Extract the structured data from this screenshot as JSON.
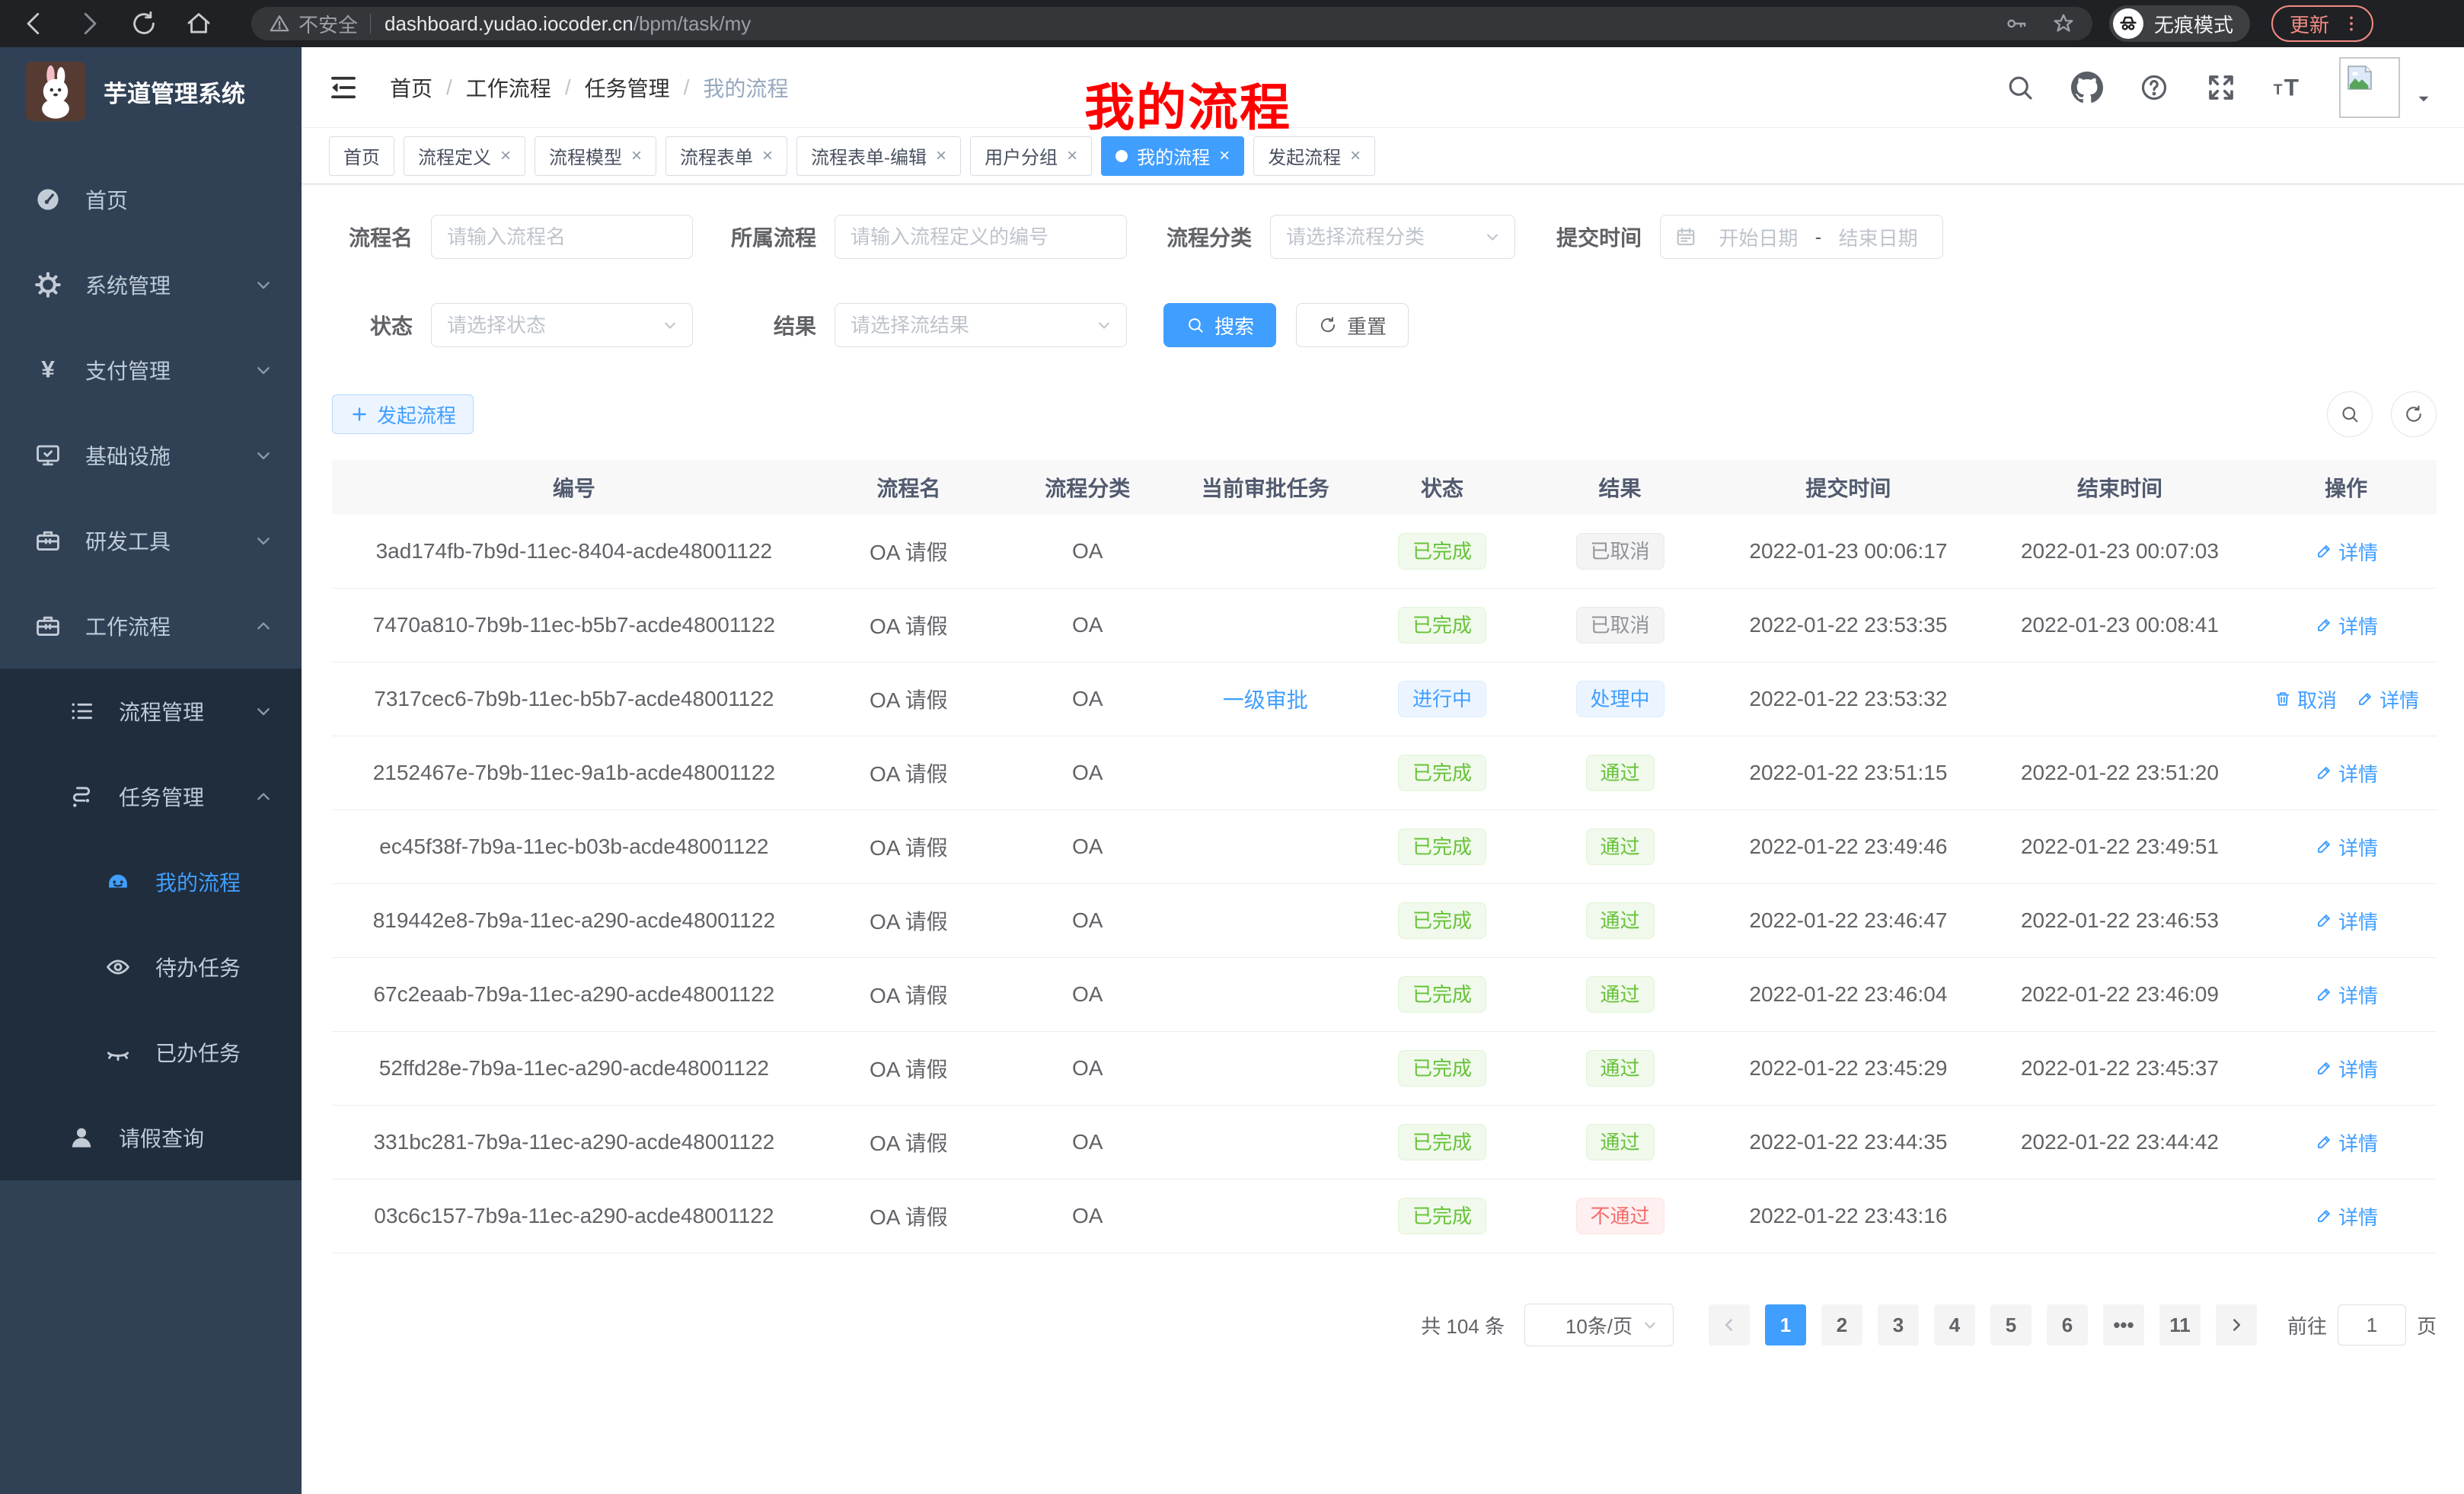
{
  "colors": {
    "accent": "#409eff",
    "success": "#67c23a",
    "danger": "#f56c6c",
    "info": "#909399",
    "sidebar_bg": "#304156",
    "submenu_bg": "#1f2d3d",
    "update_pill": "#f28b82"
  },
  "browser": {
    "security_warning": "不安全",
    "url_host": "dashboard.yudao.iocoder.cn",
    "url_path": "/bpm/task/my",
    "incognito_label": "无痕模式",
    "update_label": "更新"
  },
  "sidebar": {
    "logo_title": "芋道管理系统",
    "items": [
      {
        "id": "home",
        "label": "首页",
        "icon": "dashboard",
        "level": 1,
        "chevron": null,
        "active": false
      },
      {
        "id": "system",
        "label": "系统管理",
        "icon": "gear",
        "level": 1,
        "chevron": "down",
        "active": false
      },
      {
        "id": "payment",
        "label": "支付管理",
        "icon": "yen",
        "level": 1,
        "chevron": "down",
        "active": false
      },
      {
        "id": "infra",
        "label": "基础设施",
        "icon": "monitor",
        "level": 1,
        "chevron": "down",
        "active": false
      },
      {
        "id": "devtools",
        "label": "研发工具",
        "icon": "toolbox",
        "level": 1,
        "chevron": "down",
        "active": false
      },
      {
        "id": "workflow",
        "label": "工作流程",
        "icon": "toolbox",
        "level": 1,
        "chevron": "up",
        "active": false
      },
      {
        "id": "process-mgmt",
        "label": "流程管理",
        "icon": "list",
        "level": 2,
        "chevron": "down",
        "active": false
      },
      {
        "id": "task-mgmt",
        "label": "任务管理",
        "icon": "flow",
        "level": 2,
        "chevron": "up",
        "active": false
      },
      {
        "id": "my-process",
        "label": "我的流程",
        "icon": "robot",
        "level": 3,
        "chevron": null,
        "active": true
      },
      {
        "id": "todo-task",
        "label": "待办任务",
        "icon": "eye",
        "level": 3,
        "chevron": null,
        "active": false
      },
      {
        "id": "done-task",
        "label": "已办任务",
        "icon": "eye-closed",
        "level": 3,
        "chevron": null,
        "active": false
      },
      {
        "id": "leave-query",
        "label": "请假查询",
        "icon": "user",
        "level": 2,
        "chevron": null,
        "active": false
      }
    ]
  },
  "header": {
    "breadcrumb": [
      "首页",
      "工作流程",
      "任务管理",
      "我的流程"
    ],
    "annotation": "我的流程"
  },
  "tabs": [
    {
      "label": "首页",
      "active": false,
      "closable": false
    },
    {
      "label": "流程定义",
      "active": false,
      "closable": true
    },
    {
      "label": "流程模型",
      "active": false,
      "closable": true
    },
    {
      "label": "流程表单",
      "active": false,
      "closable": true
    },
    {
      "label": "流程表单-编辑",
      "active": false,
      "closable": true
    },
    {
      "label": "用户分组",
      "active": false,
      "closable": true
    },
    {
      "label": "我的流程",
      "active": true,
      "closable": true
    },
    {
      "label": "发起流程",
      "active": false,
      "closable": true
    }
  ],
  "filters": {
    "name_label": "流程名",
    "name_placeholder": "请输入流程名",
    "definition_label": "所属流程",
    "definition_placeholder": "请输入流程定义的编号",
    "category_label": "流程分类",
    "category_placeholder": "请选择流程分类",
    "time_label": "提交时间",
    "start_placeholder": "开始日期",
    "range_separator": "-",
    "end_placeholder": "结束日期",
    "status_label": "状态",
    "status_placeholder": "请选择状态",
    "result_label": "结果",
    "result_placeholder": "请选择流结果",
    "search_label": "搜索",
    "reset_label": "重置"
  },
  "toolbar": {
    "create_label": "发起流程"
  },
  "table": {
    "columns": [
      "编号",
      "流程名",
      "流程分类",
      "当前审批任务",
      "状态",
      "结果",
      "提交时间",
      "结束时间",
      "操作"
    ],
    "rows": [
      {
        "id": "3ad174fb-7b9d-11ec-8404-acde48001122",
        "name": "OA 请假",
        "category": "OA",
        "task": "",
        "status": "已完成",
        "status_type": "success",
        "result": "已取消",
        "result_type": "info",
        "submit": "2022-01-23 00:06:17",
        "end": "2022-01-23 00:07:03",
        "actions": [
          {
            "label": "详情",
            "icon": "edit-icon"
          }
        ]
      },
      {
        "id": "7470a810-7b9b-11ec-b5b7-acde48001122",
        "name": "OA 请假",
        "category": "OA",
        "task": "",
        "status": "已完成",
        "status_type": "success",
        "result": "已取消",
        "result_type": "info",
        "submit": "2022-01-22 23:53:35",
        "end": "2022-01-23 00:08:41",
        "actions": [
          {
            "label": "详情",
            "icon": "edit-icon"
          }
        ]
      },
      {
        "id": "7317cec6-7b9b-11ec-b5b7-acde48001122",
        "name": "OA 请假",
        "category": "OA",
        "task": "一级审批",
        "status": "进行中",
        "status_type": "primary",
        "result": "处理中",
        "result_type": "primary",
        "submit": "2022-01-22 23:53:32",
        "end": "",
        "actions": [
          {
            "label": "取消",
            "icon": "delete-icon"
          },
          {
            "label": "详情",
            "icon": "edit-icon"
          }
        ]
      },
      {
        "id": "2152467e-7b9b-11ec-9a1b-acde48001122",
        "name": "OA 请假",
        "category": "OA",
        "task": "",
        "status": "已完成",
        "status_type": "success",
        "result": "通过",
        "result_type": "success",
        "submit": "2022-01-22 23:51:15",
        "end": "2022-01-22 23:51:20",
        "actions": [
          {
            "label": "详情",
            "icon": "edit-icon"
          }
        ]
      },
      {
        "id": "ec45f38f-7b9a-11ec-b03b-acde48001122",
        "name": "OA 请假",
        "category": "OA",
        "task": "",
        "status": "已完成",
        "status_type": "success",
        "result": "通过",
        "result_type": "success",
        "submit": "2022-01-22 23:49:46",
        "end": "2022-01-22 23:49:51",
        "actions": [
          {
            "label": "详情",
            "icon": "edit-icon"
          }
        ]
      },
      {
        "id": "819442e8-7b9a-11ec-a290-acde48001122",
        "name": "OA 请假",
        "category": "OA",
        "task": "",
        "status": "已完成",
        "status_type": "success",
        "result": "通过",
        "result_type": "success",
        "submit": "2022-01-22 23:46:47",
        "end": "2022-01-22 23:46:53",
        "actions": [
          {
            "label": "详情",
            "icon": "edit-icon"
          }
        ]
      },
      {
        "id": "67c2eaab-7b9a-11ec-a290-acde48001122",
        "name": "OA 请假",
        "category": "OA",
        "task": "",
        "status": "已完成",
        "status_type": "success",
        "result": "通过",
        "result_type": "success",
        "submit": "2022-01-22 23:46:04",
        "end": "2022-01-22 23:46:09",
        "actions": [
          {
            "label": "详情",
            "icon": "edit-icon"
          }
        ]
      },
      {
        "id": "52ffd28e-7b9a-11ec-a290-acde48001122",
        "name": "OA 请假",
        "category": "OA",
        "task": "",
        "status": "已完成",
        "status_type": "success",
        "result": "通过",
        "result_type": "success",
        "submit": "2022-01-22 23:45:29",
        "end": "2022-01-22 23:45:37",
        "actions": [
          {
            "label": "详情",
            "icon": "edit-icon"
          }
        ]
      },
      {
        "id": "331bc281-7b9a-11ec-a290-acde48001122",
        "name": "OA 请假",
        "category": "OA",
        "task": "",
        "status": "已完成",
        "status_type": "success",
        "result": "通过",
        "result_type": "success",
        "submit": "2022-01-22 23:44:35",
        "end": "2022-01-22 23:44:42",
        "actions": [
          {
            "label": "详情",
            "icon": "edit-icon"
          }
        ]
      },
      {
        "id": "03c6c157-7b9a-11ec-a290-acde48001122",
        "name": "OA 请假",
        "category": "OA",
        "task": "",
        "status": "已完成",
        "status_type": "success",
        "result": "不通过",
        "result_type": "danger",
        "submit": "2022-01-22 23:43:16",
        "end": "",
        "actions": [
          {
            "label": "详情",
            "icon": "edit-icon"
          }
        ]
      }
    ]
  },
  "pagination": {
    "total": "共 104 条",
    "page_size": "10条/页",
    "pages": [
      "1",
      "2",
      "3",
      "4",
      "5",
      "6",
      "•••",
      "11"
    ],
    "active_page": "1",
    "goto_label": "前往",
    "goto_value": "1",
    "page_unit": "页"
  }
}
